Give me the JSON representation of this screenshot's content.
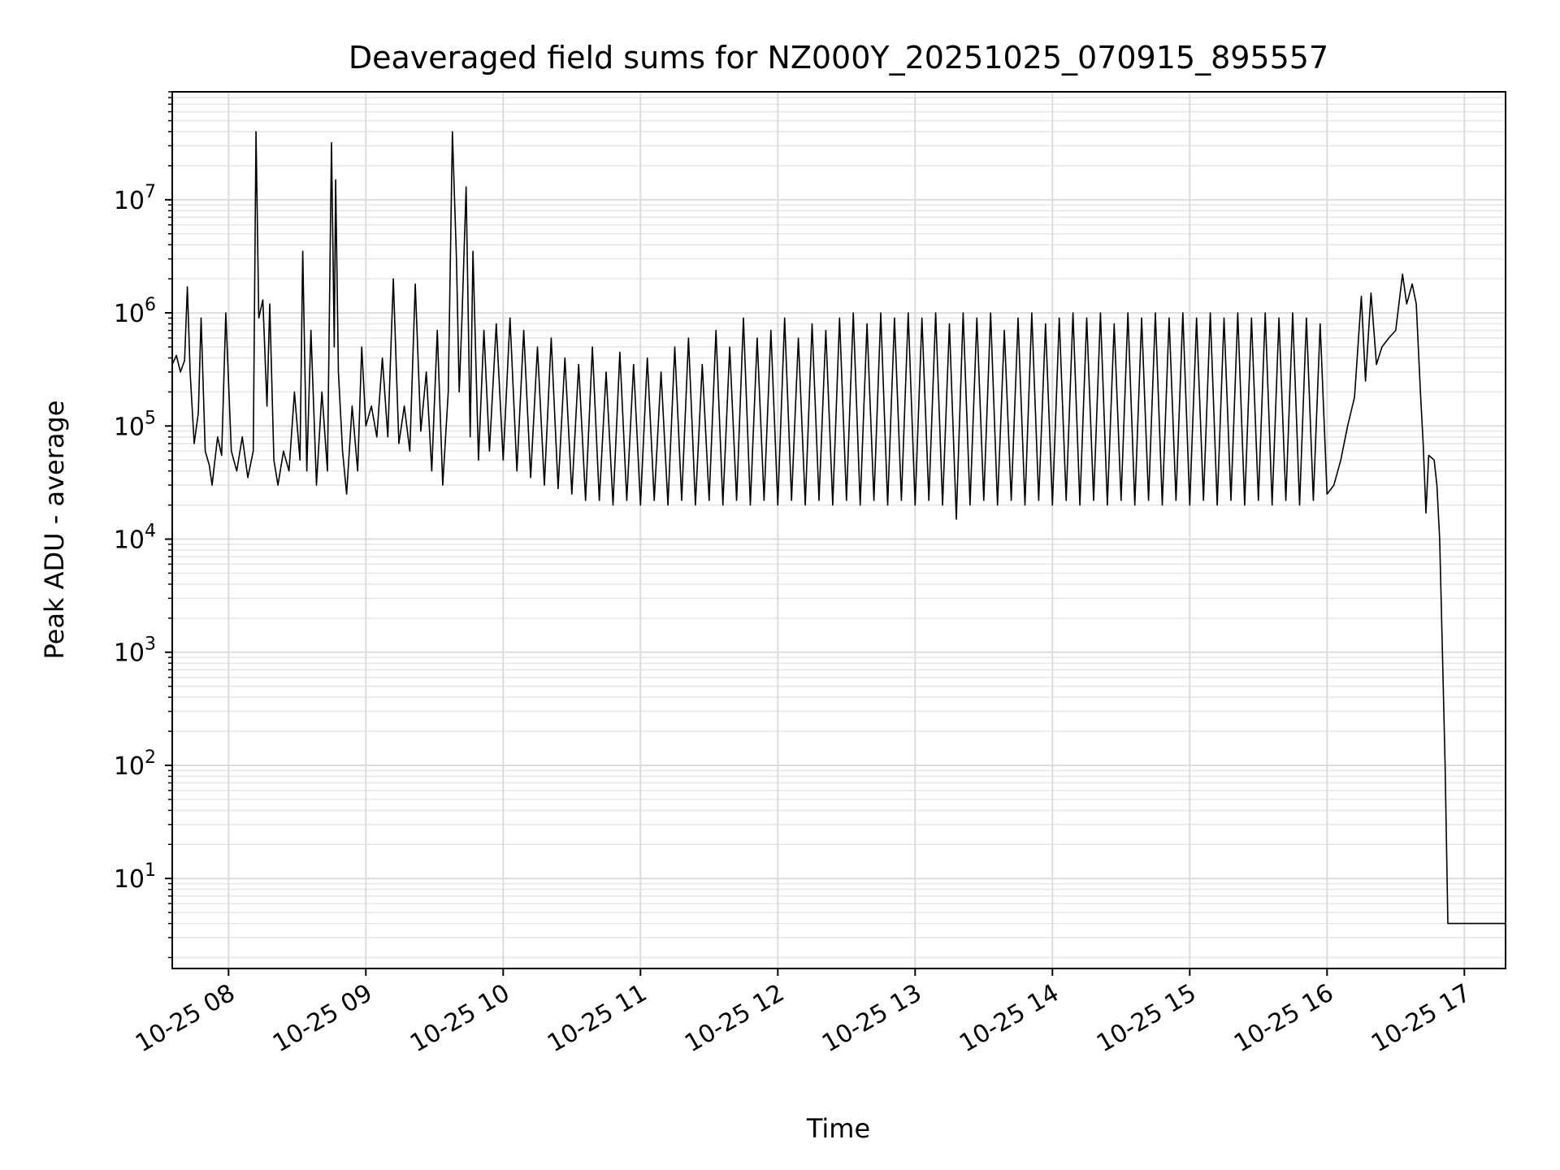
{
  "chart_data": {
    "type": "line",
    "title": "Deaveraged field sums for NZ000Y_20251025_070915_895557",
    "xlabel": "Time",
    "ylabel": "Peak ADU - average",
    "yscale": "log",
    "ylim": [
      1.6,
      90000000
    ],
    "xlim_hours": [
      7.59,
      17.3
    ],
    "grid": "on (major and minor)",
    "line_color": "#000000",
    "x_ticks": [
      {
        "label": "10-25 08",
        "hour": 8
      },
      {
        "label": "10-25 09",
        "hour": 9
      },
      {
        "label": "10-25 10",
        "hour": 10
      },
      {
        "label": "10-25 11",
        "hour": 11
      },
      {
        "label": "10-25 12",
        "hour": 12
      },
      {
        "label": "10-25 13",
        "hour": 13
      },
      {
        "label": "10-25 14",
        "hour": 14
      },
      {
        "label": "10-25 15",
        "hour": 15
      },
      {
        "label": "10-25 16",
        "hour": 16
      },
      {
        "label": "10-25 17",
        "hour": 17
      }
    ],
    "y_ticks": [
      {
        "base": "10",
        "exp": "1",
        "value": 10
      },
      {
        "base": "10",
        "exp": "2",
        "value": 100
      },
      {
        "base": "10",
        "exp": "3",
        "value": 1000
      },
      {
        "base": "10",
        "exp": "4",
        "value": 10000
      },
      {
        "base": "10",
        "exp": "5",
        "value": 100000
      },
      {
        "base": "10",
        "exp": "6",
        "value": 1000000
      },
      {
        "base": "10",
        "exp": "7",
        "value": 10000000
      }
    ],
    "series": [
      {
        "name": "deaveraged field sum",
        "points": [
          [
            7.59,
            350000
          ],
          [
            7.62,
            420000
          ],
          [
            7.65,
            300000
          ],
          [
            7.68,
            380000
          ],
          [
            7.7,
            1700000
          ],
          [
            7.72,
            300000
          ],
          [
            7.75,
            70000
          ],
          [
            7.78,
            130000
          ],
          [
            7.8,
            900000
          ],
          [
            7.83,
            60000
          ],
          [
            7.86,
            45000
          ],
          [
            7.88,
            30000
          ],
          [
            7.92,
            80000
          ],
          [
            7.95,
            55000
          ],
          [
            7.98,
            1000000
          ],
          [
            8.02,
            60000
          ],
          [
            8.06,
            40000
          ],
          [
            8.1,
            80000
          ],
          [
            8.14,
            35000
          ],
          [
            8.18,
            60000
          ],
          [
            8.2,
            40000000
          ],
          [
            8.22,
            900000
          ],
          [
            8.25,
            1300000
          ],
          [
            8.28,
            150000
          ],
          [
            8.3,
            1200000
          ],
          [
            8.33,
            50000
          ],
          [
            8.36,
            30000
          ],
          [
            8.4,
            60000
          ],
          [
            8.44,
            40000
          ],
          [
            8.48,
            200000
          ],
          [
            8.52,
            50000
          ],
          [
            8.54,
            3500000
          ],
          [
            8.57,
            40000
          ],
          [
            8.6,
            700000
          ],
          [
            8.64,
            30000
          ],
          [
            8.68,
            200000
          ],
          [
            8.72,
            40000
          ],
          [
            8.75,
            32000000
          ],
          [
            8.77,
            500000
          ],
          [
            8.78,
            15000000
          ],
          [
            8.8,
            300000
          ],
          [
            8.83,
            60000
          ],
          [
            8.86,
            25000
          ],
          [
            8.9,
            150000
          ],
          [
            8.94,
            40000
          ],
          [
            8.97,
            500000
          ],
          [
            9.0,
            100000
          ],
          [
            9.04,
            150000
          ],
          [
            9.08,
            80000
          ],
          [
            9.12,
            400000
          ],
          [
            9.16,
            80000
          ],
          [
            9.2,
            2000000
          ],
          [
            9.24,
            70000
          ],
          [
            9.28,
            150000
          ],
          [
            9.32,
            60000
          ],
          [
            9.36,
            1800000
          ],
          [
            9.4,
            90000
          ],
          [
            9.44,
            300000
          ],
          [
            9.48,
            40000
          ],
          [
            9.52,
            700000
          ],
          [
            9.56,
            30000
          ],
          [
            9.6,
            200000
          ],
          [
            9.63,
            40000000
          ],
          [
            9.66,
            3000000
          ],
          [
            9.68,
            200000
          ],
          [
            9.7,
            900000
          ],
          [
            9.73,
            13000000
          ],
          [
            9.76,
            80000
          ],
          [
            9.78,
            3500000
          ],
          [
            9.82,
            50000
          ],
          [
            9.86,
            700000
          ],
          [
            9.9,
            60000
          ],
          [
            9.95,
            800000
          ],
          [
            10.0,
            50000
          ],
          [
            10.05,
            900000
          ],
          [
            10.1,
            40000
          ],
          [
            10.15,
            700000
          ],
          [
            10.2,
            35000
          ],
          [
            10.25,
            500000
          ],
          [
            10.3,
            30000
          ],
          [
            10.35,
            600000
          ],
          [
            10.4,
            28000
          ],
          [
            10.45,
            400000
          ],
          [
            10.5,
            25000
          ],
          [
            10.55,
            350000
          ],
          [
            10.6,
            22000
          ],
          [
            10.65,
            500000
          ],
          [
            10.7,
            22000
          ],
          [
            10.75,
            300000
          ],
          [
            10.8,
            20000
          ],
          [
            10.85,
            450000
          ],
          [
            10.9,
            22000
          ],
          [
            10.95,
            350000
          ],
          [
            11.0,
            20000
          ],
          [
            11.05,
            400000
          ],
          [
            11.1,
            22000
          ],
          [
            11.15,
            300000
          ],
          [
            11.2,
            20000
          ],
          [
            11.25,
            500000
          ],
          [
            11.3,
            22000
          ],
          [
            11.35,
            600000
          ],
          [
            11.4,
            20000
          ],
          [
            11.45,
            350000
          ],
          [
            11.5,
            22000
          ],
          [
            11.55,
            700000
          ],
          [
            11.6,
            20000
          ],
          [
            11.65,
            500000
          ],
          [
            11.7,
            22000
          ],
          [
            11.75,
            900000
          ],
          [
            11.8,
            20000
          ],
          [
            11.85,
            600000
          ],
          [
            11.9,
            22000
          ],
          [
            11.95,
            700000
          ],
          [
            12.0,
            20000
          ],
          [
            12.05,
            900000
          ],
          [
            12.1,
            22000
          ],
          [
            12.15,
            600000
          ],
          [
            12.2,
            20000
          ],
          [
            12.25,
            800000
          ],
          [
            12.3,
            22000
          ],
          [
            12.35,
            700000
          ],
          [
            12.4,
            20000
          ],
          [
            12.45,
            900000
          ],
          [
            12.5,
            22000
          ],
          [
            12.55,
            1000000
          ],
          [
            12.6,
            20000
          ],
          [
            12.65,
            800000
          ],
          [
            12.7,
            22000
          ],
          [
            12.75,
            1000000
          ],
          [
            12.8,
            20000
          ],
          [
            12.85,
            900000
          ],
          [
            12.9,
            22000
          ],
          [
            12.95,
            1000000
          ],
          [
            13.0,
            20000
          ],
          [
            13.05,
            900000
          ],
          [
            13.1,
            22000
          ],
          [
            13.15,
            1000000
          ],
          [
            13.2,
            20000
          ],
          [
            13.25,
            800000
          ],
          [
            13.3,
            15000
          ],
          [
            13.35,
            1000000
          ],
          [
            13.4,
            20000
          ],
          [
            13.45,
            900000
          ],
          [
            13.5,
            22000
          ],
          [
            13.55,
            1000000
          ],
          [
            13.6,
            20000
          ],
          [
            13.65,
            700000
          ],
          [
            13.7,
            22000
          ],
          [
            13.75,
            900000
          ],
          [
            13.8,
            20000
          ],
          [
            13.85,
            1000000
          ],
          [
            13.9,
            22000
          ],
          [
            13.95,
            800000
          ],
          [
            14.0,
            20000
          ],
          [
            14.05,
            900000
          ],
          [
            14.1,
            22000
          ],
          [
            14.15,
            1000000
          ],
          [
            14.2,
            20000
          ],
          [
            14.25,
            900000
          ],
          [
            14.3,
            22000
          ],
          [
            14.35,
            1000000
          ],
          [
            14.4,
            20000
          ],
          [
            14.45,
            800000
          ],
          [
            14.5,
            22000
          ],
          [
            14.55,
            1000000
          ],
          [
            14.6,
            20000
          ],
          [
            14.65,
            900000
          ],
          [
            14.7,
            22000
          ],
          [
            14.75,
            1000000
          ],
          [
            14.8,
            20000
          ],
          [
            14.85,
            900000
          ],
          [
            14.9,
            22000
          ],
          [
            14.95,
            1000000
          ],
          [
            15.0,
            20000
          ],
          [
            15.05,
            900000
          ],
          [
            15.1,
            22000
          ],
          [
            15.15,
            1000000
          ],
          [
            15.2,
            20000
          ],
          [
            15.25,
            900000
          ],
          [
            15.3,
            22000
          ],
          [
            15.35,
            1000000
          ],
          [
            15.4,
            20000
          ],
          [
            15.45,
            900000
          ],
          [
            15.5,
            22000
          ],
          [
            15.55,
            1000000
          ],
          [
            15.6,
            20000
          ],
          [
            15.65,
            900000
          ],
          [
            15.7,
            22000
          ],
          [
            15.75,
            1000000
          ],
          [
            15.8,
            20000
          ],
          [
            15.85,
            900000
          ],
          [
            15.9,
            22000
          ],
          [
            15.95,
            800000
          ],
          [
            16.0,
            25000
          ],
          [
            16.05,
            30000
          ],
          [
            16.1,
            50000
          ],
          [
            16.15,
            100000
          ],
          [
            16.2,
            180000
          ],
          [
            16.25,
            1400000
          ],
          [
            16.28,
            250000
          ],
          [
            16.32,
            1500000
          ],
          [
            16.36,
            350000
          ],
          [
            16.4,
            500000
          ],
          [
            16.45,
            600000
          ],
          [
            16.5,
            700000
          ],
          [
            16.55,
            2200000
          ],
          [
            16.58,
            1200000
          ],
          [
            16.62,
            1800000
          ],
          [
            16.65,
            1200000
          ],
          [
            16.68,
            200000
          ],
          [
            16.7,
            70000
          ],
          [
            16.72,
            17000
          ],
          [
            16.74,
            55000
          ],
          [
            16.78,
            50000
          ],
          [
            16.8,
            30000
          ],
          [
            16.82,
            10000
          ],
          [
            16.84,
            1000
          ],
          [
            16.86,
            100
          ],
          [
            16.88,
            4
          ],
          [
            17.3,
            4
          ]
        ]
      }
    ]
  }
}
